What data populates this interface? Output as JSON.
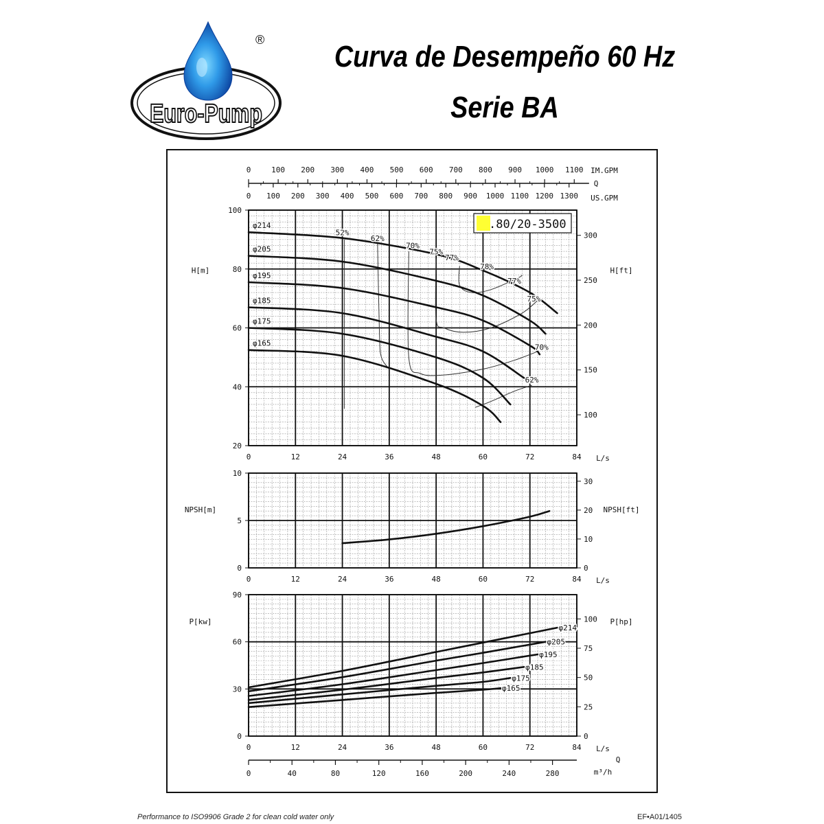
{
  "header": {
    "logo_text": "Euro-Pump",
    "registered_mark": "®",
    "title_line1": "Curva de Desempeño 60 Hz",
    "title_line2": "Serie BA"
  },
  "footer": {
    "note": "Performance to ISO9906 Grade 2 for clean cold water only",
    "code": "EF•A01/1405"
  },
  "colors": {
    "curve": "#111111",
    "grid_minor": "#9a9a9a",
    "grid_major": "#111111",
    "model_highlight": "#ffff33",
    "logo_blue": "#1a6fd6"
  },
  "chart_data": [
    {
      "type": "line",
      "name_label": "head-chart",
      "model_label": ".80/20-3500",
      "x_unit": "L/s",
      "xlim": [
        0,
        84
      ],
      "x_ticks": [
        0,
        12,
        24,
        36,
        48,
        60,
        72,
        84
      ],
      "ylabel_left": "H[m]",
      "ylim": [
        20,
        100
      ],
      "y_ticks_left": [
        20,
        40,
        60,
        80,
        100
      ],
      "ylabel_right": "H[ft]",
      "y_ticks_right": [
        100,
        150,
        200,
        250,
        300
      ],
      "grid": true,
      "top_axis": {
        "label_q": "Q",
        "imperial_label": "IM.GPM",
        "imperial_ticks": [
          0,
          100,
          200,
          300,
          400,
          500,
          600,
          700,
          800,
          900,
          1000,
          1100
        ],
        "us_label": "US.GPM",
        "us_ticks": [
          0,
          100,
          200,
          300,
          400,
          500,
          600,
          700,
          800,
          900,
          1000,
          1100,
          1200,
          1300
        ]
      },
      "series": [
        {
          "name": "φ214",
          "points": [
            [
              0,
              92.5
            ],
            [
              24,
              90.5
            ],
            [
              48,
              85
            ],
            [
              60,
              79.5
            ],
            [
              72,
              72
            ],
            [
              79,
              65
            ]
          ]
        },
        {
          "name": "φ205",
          "points": [
            [
              0,
              84.5
            ],
            [
              24,
              82.5
            ],
            [
              48,
              76
            ],
            [
              60,
              71
            ],
            [
              72,
              62.5
            ],
            [
              76,
              58
            ]
          ]
        },
        {
          "name": "φ195",
          "points": [
            [
              0,
              75.5
            ],
            [
              24,
              73.5
            ],
            [
              48,
              67
            ],
            [
              60,
              62.5
            ],
            [
              72,
              54
            ],
            [
              74.5,
              51
            ]
          ]
        },
        {
          "name": "φ185",
          "points": [
            [
              0,
              67
            ],
            [
              24,
              65
            ],
            [
              48,
              57
            ],
            [
              60,
              52
            ],
            [
              70.5,
              43
            ]
          ]
        },
        {
          "name": "φ175",
          "points": [
            [
              0,
              60
            ],
            [
              24,
              58
            ],
            [
              48,
              50
            ],
            [
              60,
              43
            ],
            [
              67,
              34
            ]
          ]
        },
        {
          "name": "φ165",
          "points": [
            [
              0,
              52.5
            ],
            [
              24,
              50.5
            ],
            [
              48,
              41
            ],
            [
              60,
              33.5
            ],
            [
              64.5,
              28
            ]
          ]
        }
      ],
      "efficiency_labels": [
        "52%",
        "62%",
        "70%",
        "75%",
        "77%",
        "78%",
        "77%",
        "75%",
        "70%",
        "62%"
      ],
      "efficiency_label_points": [
        [
          24,
          91.5
        ],
        [
          33,
          89.5
        ],
        [
          42,
          87
        ],
        [
          48,
          85
        ],
        [
          52,
          83
        ],
        [
          61,
          80
        ],
        [
          68,
          75
        ],
        [
          73,
          69
        ],
        [
          75,
          52.5
        ],
        [
          72.5,
          41.5
        ]
      ],
      "efficiency_contours": [
        {
          "name": "52%",
          "points": [
            [
              24.5,
              90
            ],
            [
              24.5,
              32.5
            ]
          ]
        },
        {
          "name": "62%",
          "points": [
            [
              33,
              89
            ],
            [
              33.5,
              58
            ],
            [
              34,
              50
            ],
            [
              36,
              46
            ]
          ]
        },
        {
          "name": "62%",
          "points": [
            [
              58,
              33
            ],
            [
              62,
              35
            ],
            [
              68,
              38.5
            ],
            [
              72.5,
              40.5
            ]
          ]
        },
        {
          "name": "70%",
          "points": [
            [
              41,
              86
            ],
            [
              41,
              50
            ],
            [
              44,
              44.5
            ],
            [
              50,
              44
            ],
            [
              60,
              46
            ],
            [
              68,
              49
            ],
            [
              74,
              52
            ]
          ]
        },
        {
          "name": "75%",
          "points": [
            [
              48,
              83.5
            ],
            [
              48,
              63
            ],
            [
              50,
              60
            ],
            [
              55,
              58.5
            ],
            [
              62,
              60
            ],
            [
              70,
              65
            ],
            [
              74.5,
              70
            ]
          ]
        },
        {
          "name": "77%",
          "points": [
            [
              54,
              81
            ],
            [
              54,
              74.5
            ],
            [
              57,
              72
            ],
            [
              62,
              73
            ],
            [
              69,
              77
            ],
            [
              70,
              78
            ]
          ]
        }
      ]
    },
    {
      "type": "line",
      "name_label": "npsh-chart",
      "x_unit": "L/s",
      "xlim": [
        0,
        84
      ],
      "x_ticks": [
        0,
        12,
        24,
        36,
        48,
        60,
        72,
        84
      ],
      "ylabel_left": "NPSH[m]",
      "ylim": [
        0,
        10
      ],
      "y_ticks_left": [
        0,
        5,
        10
      ],
      "ylabel_right": "NPSH[ft]",
      "y_ticks_right": [
        0,
        10,
        20,
        30
      ],
      "grid": true,
      "series": [
        {
          "name": "",
          "points": [
            [
              24,
              2.6
            ],
            [
              36,
              3.0
            ],
            [
              48,
              3.6
            ],
            [
              60,
              4.4
            ],
            [
              72,
              5.4
            ],
            [
              77,
              6.0
            ]
          ]
        }
      ]
    },
    {
      "type": "line",
      "name_label": "power-chart",
      "x_unit": "L/s",
      "xlim": [
        0,
        84
      ],
      "x_ticks": [
        0,
        12,
        24,
        36,
        48,
        60,
        72,
        84
      ],
      "ylabel_left": "P[kw]",
      "ylim": [
        0,
        90
      ],
      "y_ticks_left": [
        0,
        30,
        60,
        90
      ],
      "ylabel_right": "P[hp]",
      "y_ticks_right": [
        0,
        25,
        50,
        75,
        100
      ],
      "grid": true,
      "bottom_axis": {
        "label_q": "Q",
        "unit": "m³/h",
        "ticks": [
          0,
          40,
          80,
          120,
          160,
          200,
          240,
          280
        ]
      },
      "series": [
        {
          "name": "φ214",
          "points": [
            [
              0,
              31
            ],
            [
              24,
              41.5
            ],
            [
              48,
              53.5
            ],
            [
              60,
              59.5
            ],
            [
              79,
              69
            ]
          ]
        },
        {
          "name": "φ205",
          "points": [
            [
              0,
              28.5
            ],
            [
              24,
              37.5
            ],
            [
              48,
              48
            ],
            [
              60,
              53
            ],
            [
              76,
              60
            ]
          ]
        },
        {
          "name": "φ195",
          "points": [
            [
              0,
              25.5
            ],
            [
              24,
              33
            ],
            [
              48,
              42
            ],
            [
              60,
              46.5
            ],
            [
              74,
              52
            ]
          ]
        },
        {
          "name": "φ185",
          "points": [
            [
              0,
              23
            ],
            [
              24,
              29.5
            ],
            [
              48,
              37
            ],
            [
              60,
              40.5
            ],
            [
              70.5,
              44
            ]
          ]
        },
        {
          "name": "φ175",
          "points": [
            [
              0,
              21
            ],
            [
              24,
              26.5
            ],
            [
              48,
              32
            ],
            [
              60,
              34.5
            ],
            [
              67,
              37
            ]
          ]
        },
        {
          "name": "φ165",
          "points": [
            [
              0,
              18.5
            ],
            [
              24,
              23
            ],
            [
              48,
              27.5
            ],
            [
              60,
              29.5
            ],
            [
              64.5,
              30.5
            ]
          ]
        }
      ]
    }
  ]
}
